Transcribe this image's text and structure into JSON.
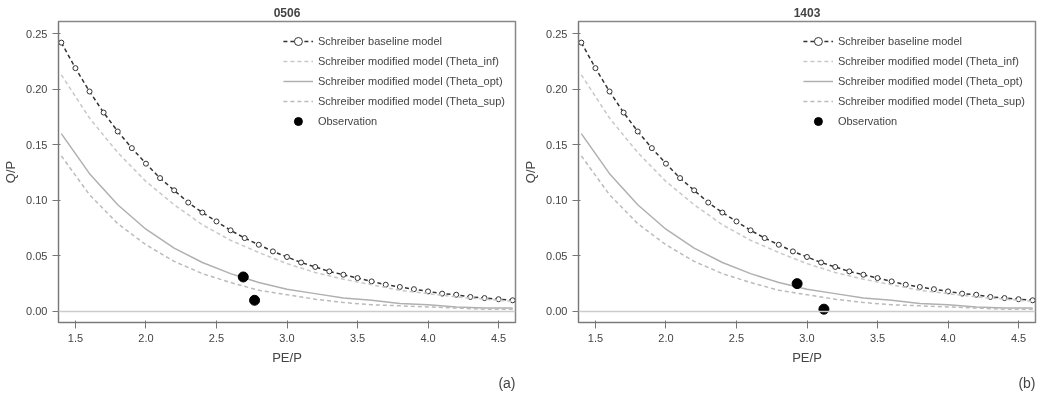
{
  "chart_data": [
    {
      "type": "line",
      "title": "0506",
      "xlabel": "PE/P",
      "ylabel": "Q/P",
      "xlim": [
        1.38,
        4.62
      ],
      "ylim": [
        -0.01,
        0.261
      ],
      "xticks": [
        1.5,
        {
          "value": 2,
          "label": "2.0"
        },
        2.5,
        {
          "value": 3,
          "label": "3.0"
        },
        3.5,
        {
          "value": 4,
          "label": "4.0"
        },
        4.5
      ],
      "yticks": [
        {
          "value": 0,
          "label": "0.00"
        },
        0.05,
        {
          "value": 0.1,
          "label": "0.10"
        },
        0.15,
        {
          "value": 0.2,
          "label": "0.20"
        },
        0.25
      ],
      "grid": false,
      "legend": "top right",
      "annotations": [
        "(a)"
      ],
      "ref_lines": [
        {
          "axis": "y",
          "value": 0,
          "color": "#cccccc"
        }
      ],
      "series": [
        {
          "name": "Schreiber baseline model",
          "type": "line",
          "color": "#333333",
          "line_style": "dashed",
          "marker": "circle",
          "x": [
            1.4,
            1.5,
            1.6,
            1.7,
            1.8,
            1.9,
            2.0,
            2.1,
            2.2,
            2.3,
            2.4,
            2.5,
            2.6,
            2.7,
            2.8,
            2.9,
            3.0,
            3.1,
            3.2,
            3.3,
            3.4,
            3.5,
            3.6,
            3.7,
            3.8,
            3.9,
            4.0,
            4.1,
            4.2,
            4.3,
            4.4,
            4.5,
            4.6
          ],
          "values": [
            0.242,
            0.219,
            0.198,
            0.179,
            0.162,
            0.147,
            0.133,
            0.12,
            0.109,
            0.098,
            0.089,
            0.081,
            0.073,
            0.066,
            0.06,
            0.054,
            0.049,
            0.044,
            0.04,
            0.036,
            0.033,
            0.03,
            0.027,
            0.024,
            0.022,
            0.02,
            0.018,
            0.016,
            0.015,
            0.013,
            0.012,
            0.011,
            0.01
          ]
        },
        {
          "name": "Schreiber modified model (Theta_inf)",
          "type": "line",
          "color": "#c8c8c8",
          "line_style": "dashed",
          "x": [
            1.4,
            1.6,
            1.8,
            2.0,
            2.2,
            2.4,
            2.6,
            2.8,
            3.0,
            3.2,
            3.4,
            3.6,
            3.8,
            4.0,
            4.2,
            4.4,
            4.6
          ],
          "values": [
            0.213,
            0.174,
            0.143,
            0.117,
            0.096,
            0.078,
            0.064,
            0.053,
            0.043,
            0.035,
            0.029,
            0.024,
            0.019,
            0.016,
            0.013,
            0.011,
            0.009
          ]
        },
        {
          "name": "Schreiber modified model (Theta_opt)",
          "type": "line",
          "color": "#b0b0b0",
          "line_style": "solid",
          "x": [
            1.4,
            1.6,
            1.8,
            2.0,
            2.2,
            2.4,
            2.6,
            2.8,
            3.0,
            3.2,
            3.4,
            3.6,
            3.8,
            4.0,
            4.2,
            4.4,
            4.6
          ],
          "values": [
            0.16,
            0.124,
            0.096,
            0.074,
            0.057,
            0.044,
            0.034,
            0.026,
            0.02,
            0.016,
            0.012,
            0.01,
            0.007,
            0.006,
            0.004,
            0.003,
            0.003
          ]
        },
        {
          "name": "Schreiber modified model (Theta_sup)",
          "type": "line",
          "color": "#bbbbbb",
          "line_style": "dashed",
          "x": [
            1.4,
            1.6,
            1.8,
            2.0,
            2.2,
            2.4,
            2.6,
            2.8,
            3.0,
            3.2,
            3.4,
            3.6,
            3.8,
            4.0,
            4.2,
            4.4,
            4.6
          ],
          "values": [
            0.14,
            0.105,
            0.079,
            0.06,
            0.045,
            0.034,
            0.026,
            0.019,
            0.015,
            0.011,
            0.008,
            0.006,
            0.005,
            0.004,
            0.003,
            0.002,
            0.002
          ]
        },
        {
          "name": "Observation",
          "type": "scatter",
          "color": "#000000",
          "marker": "circle",
          "x": [
            2.69,
            2.77
          ],
          "values": [
            0.031,
            0.01
          ]
        }
      ]
    },
    {
      "type": "line",
      "title": "1403",
      "xlabel": "PE/P",
      "ylabel": "Q/P",
      "xlim": [
        1.38,
        4.62
      ],
      "ylim": [
        -0.01,
        0.261
      ],
      "xticks": [
        1.5,
        {
          "value": 2,
          "label": "2.0"
        },
        2.5,
        {
          "value": 3,
          "label": "3.0"
        },
        3.5,
        {
          "value": 4,
          "label": "4.0"
        },
        4.5
      ],
      "yticks": [
        {
          "value": 0,
          "label": "0.00"
        },
        0.05,
        {
          "value": 0.1,
          "label": "0.10"
        },
        0.15,
        {
          "value": 0.2,
          "label": "0.20"
        },
        0.25
      ],
      "grid": false,
      "legend": "top right",
      "annotations": [
        "(b)"
      ],
      "ref_lines": [
        {
          "axis": "y",
          "value": 0,
          "color": "#cccccc"
        }
      ],
      "series": [
        {
          "name": "Schreiber baseline model",
          "type": "line",
          "color": "#333333",
          "line_style": "dashed",
          "marker": "circle",
          "x": [
            1.4,
            1.5,
            1.6,
            1.7,
            1.8,
            1.9,
            2.0,
            2.1,
            2.2,
            2.3,
            2.4,
            2.5,
            2.6,
            2.7,
            2.8,
            2.9,
            3.0,
            3.1,
            3.2,
            3.3,
            3.4,
            3.5,
            3.6,
            3.7,
            3.8,
            3.9,
            4.0,
            4.1,
            4.2,
            4.3,
            4.4,
            4.5,
            4.6
          ],
          "values": [
            0.242,
            0.219,
            0.198,
            0.179,
            0.162,
            0.147,
            0.133,
            0.12,
            0.109,
            0.098,
            0.089,
            0.081,
            0.073,
            0.066,
            0.06,
            0.054,
            0.049,
            0.044,
            0.04,
            0.036,
            0.033,
            0.03,
            0.027,
            0.024,
            0.022,
            0.02,
            0.018,
            0.016,
            0.015,
            0.013,
            0.012,
            0.011,
            0.01
          ]
        },
        {
          "name": "Schreiber modified model (Theta_inf)",
          "type": "line",
          "color": "#c8c8c8",
          "line_style": "dashed",
          "x": [
            1.4,
            1.6,
            1.8,
            2.0,
            2.2,
            2.4,
            2.6,
            2.8,
            3.0,
            3.2,
            3.4,
            3.6,
            3.8,
            4.0,
            4.2,
            4.4,
            4.6
          ],
          "values": [
            0.213,
            0.174,
            0.143,
            0.117,
            0.096,
            0.078,
            0.064,
            0.053,
            0.043,
            0.035,
            0.029,
            0.024,
            0.019,
            0.016,
            0.013,
            0.011,
            0.009
          ]
        },
        {
          "name": "Schreiber modified model (Theta_opt)",
          "type": "line",
          "color": "#b0b0b0",
          "line_style": "solid",
          "x": [
            1.4,
            1.6,
            1.8,
            2.0,
            2.2,
            2.4,
            2.6,
            2.8,
            3.0,
            3.2,
            3.4,
            3.6,
            3.8,
            4.0,
            4.2,
            4.4,
            4.6
          ],
          "values": [
            0.16,
            0.124,
            0.096,
            0.074,
            0.057,
            0.044,
            0.034,
            0.026,
            0.02,
            0.016,
            0.012,
            0.01,
            0.007,
            0.006,
            0.004,
            0.003,
            0.003
          ]
        },
        {
          "name": "Schreiber modified model (Theta_sup)",
          "type": "line",
          "color": "#bbbbbb",
          "line_style": "dashed",
          "x": [
            1.4,
            1.6,
            1.8,
            2.0,
            2.2,
            2.4,
            2.6,
            2.8,
            3.0,
            3.2,
            3.4,
            3.6,
            3.8,
            4.0,
            4.2,
            4.4,
            4.6
          ],
          "values": [
            0.14,
            0.105,
            0.079,
            0.06,
            0.045,
            0.034,
            0.026,
            0.019,
            0.015,
            0.011,
            0.008,
            0.006,
            0.005,
            0.004,
            0.003,
            0.002,
            0.002
          ]
        },
        {
          "name": "Observation",
          "type": "scatter",
          "color": "#000000",
          "marker": "circle",
          "x": [
            2.93,
            3.12
          ],
          "values": [
            0.025,
            0.002
          ]
        }
      ]
    }
  ]
}
